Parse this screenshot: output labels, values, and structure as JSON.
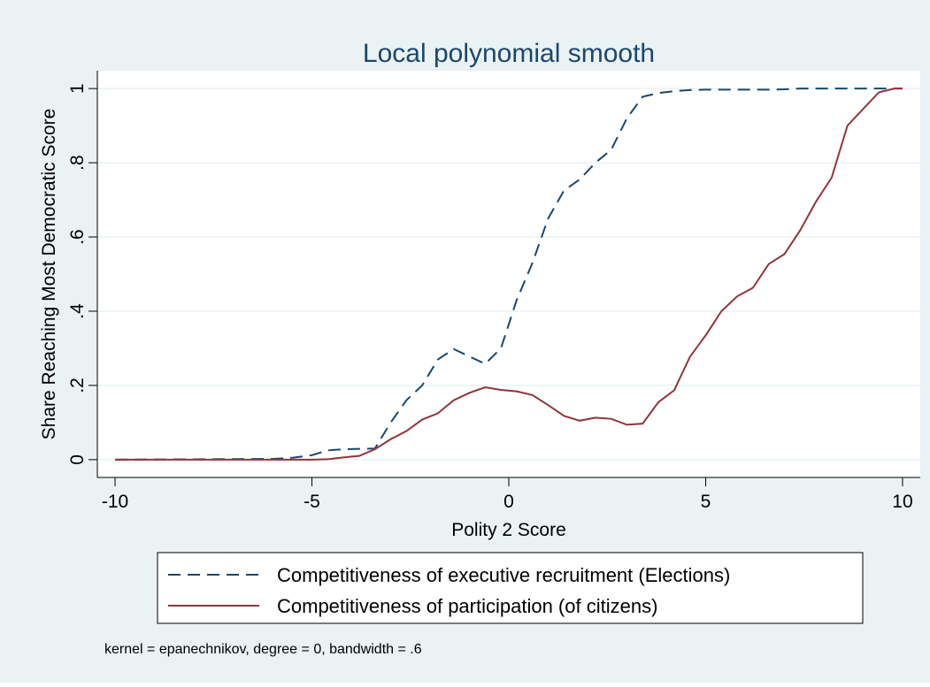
{
  "chart_data": {
    "type": "line",
    "title": "Local polynomial smooth",
    "x_label": "Polity 2 Score",
    "y_label": "Share Reaching Most Democratic Score",
    "note": "kernel = epanechnikov, degree = 0, bandwidth = .6",
    "x": [
      -10,
      -6,
      -5.5,
      -5,
      -4.6,
      -4.2,
      -3.8,
      -3.4,
      -3.0,
      -2.6,
      -2.2,
      -1.8,
      -1.4,
      -1.0,
      -0.6,
      -0.2,
      0.2,
      0.6,
      1.0,
      1.4,
      1.8,
      2.2,
      2.6,
      3.0,
      3.4,
      3.8,
      4.2,
      4.6,
      5.0,
      5.4,
      5.8,
      6.2,
      6.6,
      7.0,
      7.4,
      7.8,
      8.2,
      8.6,
      9.0,
      9.4,
      9.8,
      10
    ],
    "series": [
      {
        "name": "Competitiveness of executive recruitment (Elections)",
        "color": "#1a476f",
        "style": "dashed",
        "values": [
          0,
          0.002,
          0.005,
          0.012,
          0.025,
          0.028,
          0.029,
          0.03,
          0.1,
          0.16,
          0.2,
          0.27,
          0.298,
          0.278,
          0.258,
          0.3,
          0.43,
          0.53,
          0.65,
          0.725,
          0.755,
          0.8,
          0.835,
          0.92,
          0.978,
          0.988,
          0.993,
          0.996,
          0.997,
          0.997,
          0.997,
          0.997,
          0.997,
          0.998,
          1,
          1,
          1,
          1,
          1,
          1,
          1,
          1
        ]
      },
      {
        "name": "Competitiveness of participation (of citizens)",
        "color": "#90353b",
        "style": "solid",
        "values": [
          0,
          0,
          0,
          0,
          0.001,
          0.006,
          0.01,
          0.028,
          0.055,
          0.077,
          0.108,
          0.125,
          0.16,
          0.18,
          0.195,
          0.188,
          0.184,
          0.174,
          0.147,
          0.118,
          0.105,
          0.113,
          0.11,
          0.094,
          0.097,
          0.155,
          0.187,
          0.277,
          0.335,
          0.4,
          0.44,
          0.463,
          0.527,
          0.554,
          0.618,
          0.695,
          0.76,
          0.9,
          0.945,
          0.99,
          1,
          1
        ]
      }
    ],
    "xlim": [
      -10.45,
      10.45
    ],
    "xticks": [
      -10,
      -5,
      0,
      5,
      10
    ],
    "ylim": [
      -0.048,
      1.048
    ],
    "yticks": [
      0,
      {
        "value": 0.2,
        "label": ".2"
      },
      {
        "value": 0.4,
        "label": ".4"
      },
      {
        "value": 0.6,
        "label": ".6"
      },
      {
        "value": 0.8,
        "label": ".8"
      },
      1
    ],
    "grid": true,
    "legend": "bottom"
  }
}
